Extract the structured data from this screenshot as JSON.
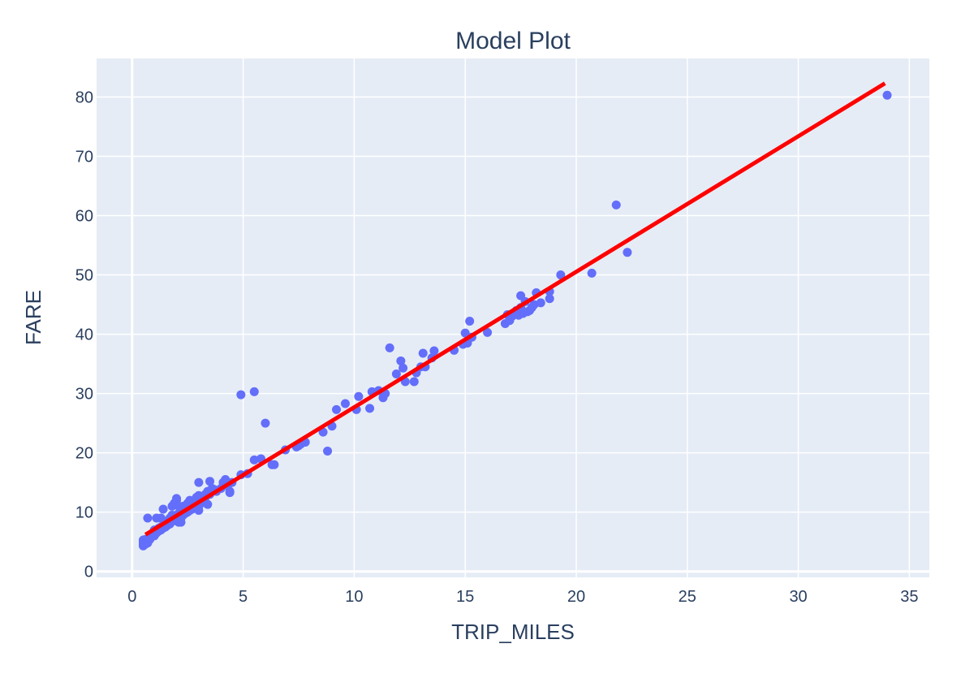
{
  "chart_data": {
    "type": "scatter",
    "title": "Model Plot",
    "xlabel": "TRIP_MILES",
    "ylabel": "FARE",
    "xlim": [
      -1.6,
      35.9
    ],
    "ylim": [
      -1.0,
      86.5
    ],
    "xticks": [
      0,
      5,
      10,
      15,
      20,
      25,
      30,
      35
    ],
    "yticks": [
      0,
      10,
      20,
      30,
      40,
      50,
      60,
      70,
      80
    ],
    "grid": true,
    "colors": {
      "points": "#636efa",
      "line": "#ff0000",
      "plot_bg": "#e5ecf6",
      "grid": "#ffffff",
      "text": "#2a3f5f"
    },
    "series": [
      {
        "kind": "markers",
        "points": [
          [
            0.5,
            4.3
          ],
          [
            0.5,
            4.6
          ],
          [
            0.5,
            5.0
          ],
          [
            0.5,
            5.3
          ],
          [
            0.6,
            4.6
          ],
          [
            0.6,
            5.0
          ],
          [
            0.6,
            5.4
          ],
          [
            0.7,
            4.8
          ],
          [
            0.7,
            5.3
          ],
          [
            0.7,
            9.0
          ],
          [
            0.8,
            5.4
          ],
          [
            0.8,
            5.8
          ],
          [
            0.9,
            5.9
          ],
          [
            0.9,
            6.3
          ],
          [
            1.0,
            6.0
          ],
          [
            1.0,
            6.5
          ],
          [
            1.0,
            7.0
          ],
          [
            1.1,
            6.5
          ],
          [
            1.1,
            7.0
          ],
          [
            1.1,
            9.0
          ],
          [
            1.2,
            6.8
          ],
          [
            1.2,
            7.3
          ],
          [
            1.3,
            7.0
          ],
          [
            1.3,
            7.5
          ],
          [
            1.3,
            9.0
          ],
          [
            1.4,
            7.3
          ],
          [
            1.4,
            7.8
          ],
          [
            1.4,
            10.5
          ],
          [
            1.5,
            7.5
          ],
          [
            1.5,
            8.0
          ],
          [
            1.6,
            7.8
          ],
          [
            1.6,
            8.5
          ],
          [
            1.7,
            8.0
          ],
          [
            1.7,
            9.0
          ],
          [
            1.8,
            8.5
          ],
          [
            1.8,
            9.5
          ],
          [
            1.8,
            11.0
          ],
          [
            1.9,
            9.0
          ],
          [
            1.9,
            11.5
          ],
          [
            2.0,
            8.5
          ],
          [
            2.0,
            9.5
          ],
          [
            2.0,
            12.0
          ],
          [
            2.0,
            12.3
          ],
          [
            2.1,
            8.3
          ],
          [
            2.1,
            9.8
          ],
          [
            2.1,
            11.0
          ],
          [
            2.2,
            9.0
          ],
          [
            2.2,
            10.5
          ],
          [
            2.2,
            8.3
          ],
          [
            2.3,
            9.5
          ],
          [
            2.3,
            11.0
          ],
          [
            2.4,
            9.8
          ],
          [
            2.4,
            10.5
          ],
          [
            2.5,
            10.0
          ],
          [
            2.5,
            11.5
          ],
          [
            2.6,
            10.3
          ],
          [
            2.6,
            12.0
          ],
          [
            2.7,
            10.5
          ],
          [
            2.7,
            11.0
          ],
          [
            2.8,
            11.0
          ],
          [
            2.8,
            11.8
          ],
          [
            2.9,
            11.5
          ],
          [
            2.9,
            12.5
          ],
          [
            3.0,
            10.3
          ],
          [
            3.0,
            11.0
          ],
          [
            3.0,
            12.8
          ],
          [
            3.0,
            15.0
          ],
          [
            3.1,
            11.5
          ],
          [
            3.1,
            12.0
          ],
          [
            3.2,
            12.0
          ],
          [
            3.3,
            12.5
          ],
          [
            3.3,
            13.0
          ],
          [
            3.4,
            11.3
          ],
          [
            3.4,
            13.5
          ],
          [
            3.5,
            13.0
          ],
          [
            3.5,
            15.2
          ],
          [
            3.6,
            14.0
          ],
          [
            3.7,
            13.8
          ],
          [
            3.8,
            13.5
          ],
          [
            4.0,
            14.0
          ],
          [
            4.1,
            15.0
          ],
          [
            4.2,
            15.5
          ],
          [
            4.3,
            14.5
          ],
          [
            4.4,
            13.5
          ],
          [
            4.4,
            13.3
          ],
          [
            4.5,
            15.0
          ],
          [
            4.9,
            29.8
          ],
          [
            4.9,
            16.3
          ],
          [
            5.2,
            16.5
          ],
          [
            5.5,
            18.8
          ],
          [
            5.5,
            30.3
          ],
          [
            5.8,
            19.0
          ],
          [
            6.0,
            25.0
          ],
          [
            6.3,
            18.0
          ],
          [
            6.4,
            18.0
          ],
          [
            6.9,
            20.5
          ],
          [
            7.4,
            21.0
          ],
          [
            7.5,
            21.2
          ],
          [
            7.6,
            21.5
          ],
          [
            7.8,
            21.8
          ],
          [
            8.6,
            23.5
          ],
          [
            8.8,
            20.3
          ],
          [
            9.0,
            24.5
          ],
          [
            9.2,
            27.3
          ],
          [
            9.6,
            28.3
          ],
          [
            10.1,
            27.3
          ],
          [
            10.2,
            29.5
          ],
          [
            10.7,
            27.5
          ],
          [
            10.8,
            30.3
          ],
          [
            11.1,
            30.5
          ],
          [
            11.3,
            29.3
          ],
          [
            11.4,
            30.0
          ],
          [
            11.6,
            37.7
          ],
          [
            11.9,
            33.3
          ],
          [
            12.1,
            35.5
          ],
          [
            12.2,
            34.3
          ],
          [
            12.3,
            32.0
          ],
          [
            12.7,
            32.0
          ],
          [
            12.8,
            33.5
          ],
          [
            13.0,
            34.5
          ],
          [
            13.1,
            36.8
          ],
          [
            13.2,
            34.5
          ],
          [
            13.5,
            36.0
          ],
          [
            13.6,
            37.2
          ],
          [
            14.5,
            37.3
          ],
          [
            14.9,
            38.3
          ],
          [
            15.0,
            40.2
          ],
          [
            15.1,
            38.5
          ],
          [
            15.2,
            42.2
          ],
          [
            15.3,
            39.5
          ],
          [
            16.0,
            40.3
          ],
          [
            16.8,
            41.8
          ],
          [
            16.9,
            43.3
          ],
          [
            17.0,
            42.3
          ],
          [
            17.1,
            43.0
          ],
          [
            17.2,
            43.5
          ],
          [
            17.3,
            44.0
          ],
          [
            17.4,
            43.2
          ],
          [
            17.5,
            46.5
          ],
          [
            17.5,
            44.5
          ],
          [
            17.6,
            43.5
          ],
          [
            17.7,
            45.5
          ],
          [
            17.8,
            43.8
          ],
          [
            17.9,
            44.0
          ],
          [
            18.0,
            44.5
          ],
          [
            18.1,
            45.0
          ],
          [
            18.2,
            47.0
          ],
          [
            18.4,
            45.3
          ],
          [
            18.8,
            47.2
          ],
          [
            18.8,
            46.0
          ],
          [
            19.3,
            50.0
          ],
          [
            20.7,
            50.3
          ],
          [
            21.8,
            61.8
          ],
          [
            22.3,
            53.8
          ],
          [
            34.0,
            80.3
          ]
        ]
      },
      {
        "kind": "line",
        "points": [
          [
            0.6,
            6.2
          ],
          [
            33.9,
            82.3
          ]
        ]
      }
    ]
  }
}
